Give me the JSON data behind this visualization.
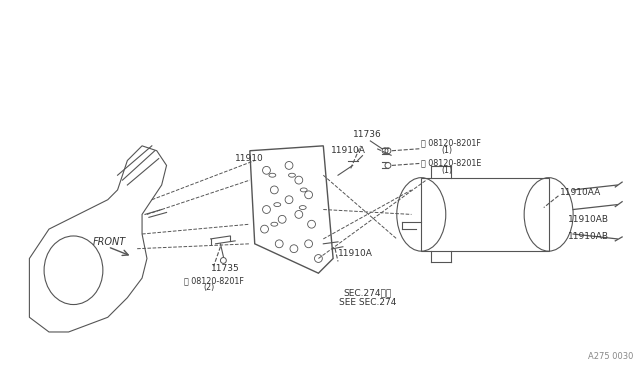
{
  "bg_color": "#ffffff",
  "line_color": "#555555",
  "text_color": "#333333",
  "title": "",
  "diagram_code": "A275 0030",
  "labels": {
    "front": "FRONT",
    "11910": "11910",
    "11910A_top": "11910A",
    "11910A_bot": "11910A",
    "11736": "11736",
    "11735": "11735",
    "11910AA": "11910AA",
    "11910AB_top": "11910AB",
    "11910AB_bot": "11910AB",
    "bolt_f1": "08120-8201F",
    "bolt_f1_qty": "(1)",
    "bolt_e1": "08120-8201E",
    "bolt_e1_qty": "(1)",
    "bolt_f2": "08120-8201F",
    "bolt_f2_qty": "(2)",
    "sec274_jp": "SEC.274参照",
    "sec274_en": "SEE SEC.274"
  }
}
